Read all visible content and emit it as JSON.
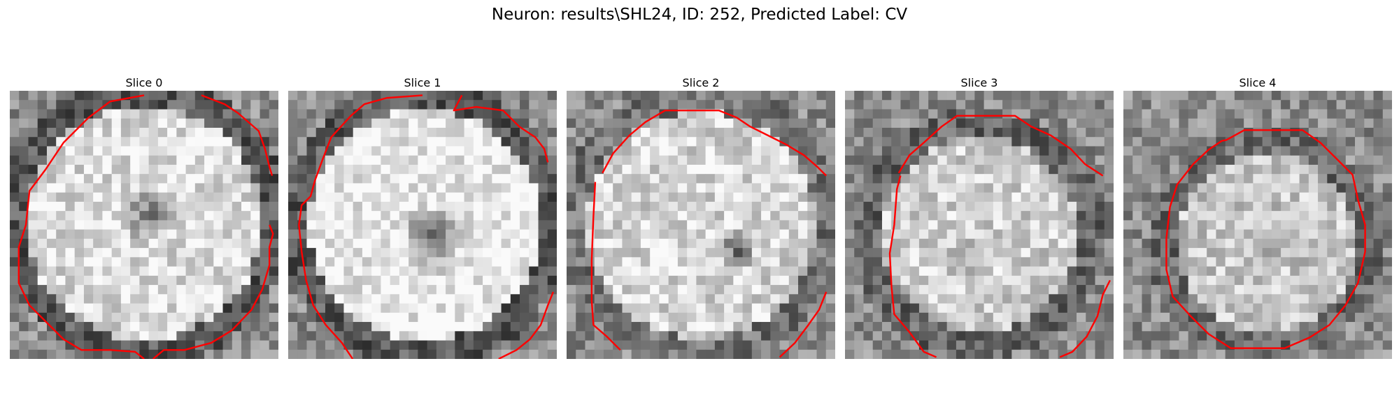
{
  "figure": {
    "title": "Neuron: results\\SHL24, ID: 252, Predicted Label: CV"
  },
  "colors": {
    "contour": "#ff0000",
    "background": "#ffffff"
  },
  "panels": [
    {
      "title": "Slice 0"
    },
    {
      "title": "Slice 1"
    },
    {
      "title": "Slice 2"
    },
    {
      "title": "Slice 3"
    },
    {
      "title": "Slice 4"
    }
  ]
}
